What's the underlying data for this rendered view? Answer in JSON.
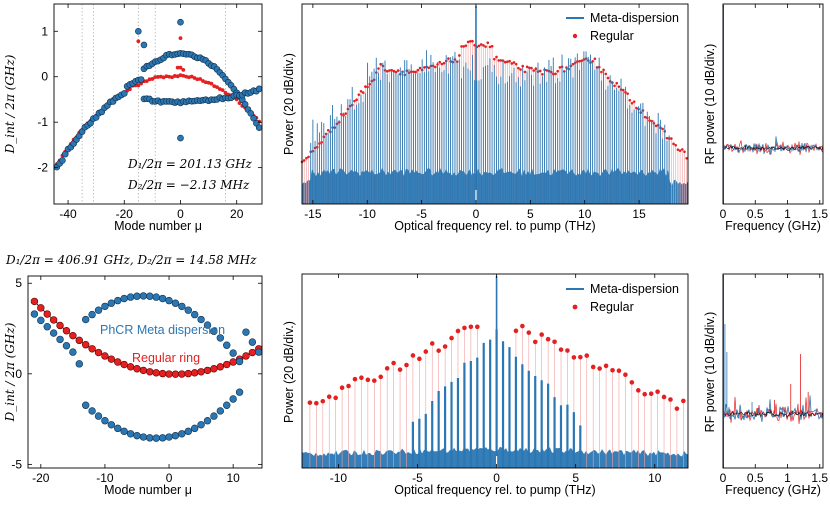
{
  "colors": {
    "meta": "#2b77b3",
    "regular": "#e42020",
    "black": "#000000"
  },
  "panels": {
    "top_left": {
      "type": "scatter",
      "ylabel": "D_int / 2π (GHz)",
      "xlabel": "Mode number μ",
      "xlim": [
        -45,
        29
      ],
      "ylim": [
        -2.8,
        1.6
      ],
      "xticks": [
        -40,
        -20,
        0,
        20
      ],
      "yticks": [
        -2,
        -1,
        0,
        1
      ],
      "xtick_labels": [
        "-40",
        "-20",
        "0",
        "20"
      ],
      "ytick_labels": [
        "-2",
        "-1",
        "0",
        "1"
      ],
      "vlines": [
        -35,
        -31,
        -15,
        -9,
        16
      ],
      "note_1": "D₁/2π = 201.13 GHz",
      "note_2": "D₂/2π = −2.13 MHz",
      "series": [
        {
          "name": "Meta-dispersion (blue)",
          "upper_peak": 0.5,
          "upper_at": 0,
          "lower_level": -0.55
        },
        {
          "name": "Regular (red)",
          "D1_GHz": 201.13,
          "D2_MHz": -2.13
        }
      ]
    },
    "top_mid": {
      "type": "spectrum",
      "ylabel": "Power (20 dB/div.)",
      "xlabel": "Optical frequency rel. to pump (THz)",
      "xlim": [
        -16,
        19.5
      ],
      "xticks": [
        -15,
        -10,
        -5,
        0,
        5,
        10,
        15
      ],
      "xtick_labels": [
        "-15",
        "-10",
        "-5",
        "0",
        "5",
        "10",
        "15"
      ],
      "legend": [
        {
          "label": "Meta-dispersion",
          "kind": "line"
        },
        {
          "label": "Regular",
          "kind": "dot"
        }
      ],
      "comb_spacing_THz": 0.201,
      "meta_span_THz": [
        -15.2,
        17.8
      ],
      "regular_span_THz": [
        -16,
        19.5
      ]
    },
    "top_right": {
      "type": "rf",
      "ylabel": "RF power (10 dB/div.)",
      "xlabel": "Frequency (GHz)",
      "xlim": [
        0,
        1.55
      ],
      "xticks": [
        0,
        0.5,
        1,
        1.5
      ],
      "xtick_labels": [
        "0",
        "0.5",
        "1",
        "1.5"
      ]
    },
    "bottom_title": "D₁/2π = 406.91 GHz, D₂/2π = 14.58 MHz",
    "bottom_left": {
      "type": "scatter",
      "ylabel": "D_int / 2π (GHz)",
      "xlabel": "Mode number μ",
      "xlim": [
        -22,
        14.5
      ],
      "ylim": [
        -5.2,
        5.4
      ],
      "xticks": [
        -20,
        -10,
        0,
        10
      ],
      "yticks": [
        -5,
        0,
        5
      ],
      "xtick_labels": [
        "-20",
        "-10",
        "0",
        "10"
      ],
      "ytick_labels": [
        "-5",
        "0",
        "5"
      ],
      "label_meta": "PhCR Meta dispersion",
      "label_regular": "Regular ring",
      "series": [
        {
          "name": "PhCR Meta dispersion",
          "upper_peak": 4.3,
          "lower_trough": -3.6
        },
        {
          "name": "Regular ring",
          "D1_GHz": 406.91,
          "D2_MHz": 14.58
        }
      ]
    },
    "bottom_mid": {
      "type": "spectrum",
      "ylabel": "Power (20 dB/div.)",
      "xlabel": "Optical frequency rel. to pump (THz)",
      "xlim": [
        -12.3,
        12.1
      ],
      "xticks": [
        -10,
        -5,
        0,
        5,
        10
      ],
      "xtick_labels": [
        "-10",
        "-5",
        "0",
        "5",
        "10"
      ],
      "legend": [
        {
          "label": "Meta-dispersion",
          "kind": "line"
        },
        {
          "label": "Regular",
          "kind": "dot"
        }
      ],
      "comb_spacing_THz": 0.407,
      "meta_span_THz": [
        -5.5,
        5.5
      ]
    },
    "bottom_right": {
      "type": "rf",
      "ylabel": "RF power (10 dB/div.)",
      "xlabel": "Frequency (GHz)",
      "xlim": [
        0,
        1.55
      ],
      "xticks": [
        0,
        0.5,
        1,
        1.5
      ],
      "xtick_labels": [
        "0",
        "0.5",
        "1",
        "1.5"
      ]
    }
  }
}
